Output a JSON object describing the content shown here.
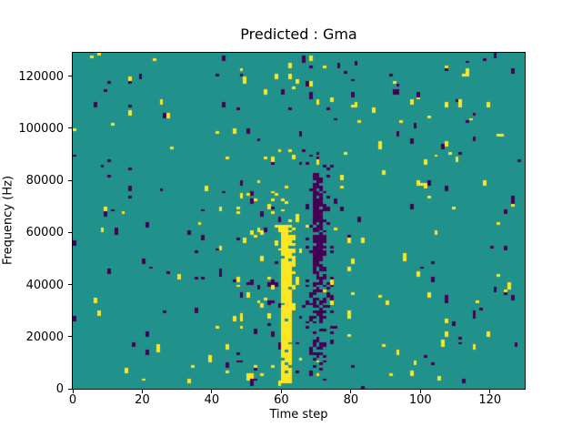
{
  "figure": {
    "background": "#ffffff",
    "text_color": "#000000",
    "spine_color": "#000000"
  },
  "chart_data": {
    "type": "heatmap",
    "title": "Predicted : Gma",
    "xlabel": "Time step",
    "ylabel": "Frequency (Hz)",
    "x_ticks": [
      0,
      20,
      40,
      60,
      80,
      100,
      120
    ],
    "y_ticks": [
      0,
      20000,
      40000,
      60000,
      80000,
      100000,
      120000
    ],
    "x_range": [
      0,
      130
    ],
    "y_range": [
      0,
      129000
    ],
    "grid": {
      "cols": 130,
      "rows": 129,
      "hz_per_row": 1000
    },
    "legend": "none",
    "gridlines": false,
    "background_value": 1,
    "value_levels": [
      0,
      1,
      2
    ],
    "colormap": {
      "0": "#440154",
      "1": "#21918c",
      "2": "#fde725"
    },
    "data_is_procedural_approximation": true,
    "generation": {
      "seed": 20240529,
      "base_density": {
        "low": 0.007,
        "high": 0.007
      },
      "streak_extend_prob": 0.45,
      "streak_extend2_prob": 0.18,
      "bands": [
        {
          "t": [
            40,
            80
          ],
          "rows": [
            0,
            128
          ],
          "low_mult": 1.9,
          "high_mult": 1.8
        },
        {
          "t": [
            44,
            59
          ],
          "rows": [
            0,
            60
          ],
          "low_mult": 1.4,
          "high_mult": 2.2
        },
        {
          "t": [
            100,
            129
          ],
          "rows": [
            0,
            128
          ],
          "low_mult": 1.25,
          "high_mult": 1.25
        }
      ],
      "features": [
        {
          "name": "purple-cluster-halo",
          "value": 0,
          "t": [
            67,
            74
          ],
          "rows": [
            5,
            90
          ],
          "density": 0.1
        },
        {
          "name": "purple-cluster",
          "value": 0,
          "t": [
            69,
            72
          ],
          "rows": [
            10,
            72
          ],
          "density": 0.38
        },
        {
          "name": "purple-cluster-core",
          "value": 0,
          "t": [
            69,
            71
          ],
          "rows": [
            45,
            82
          ],
          "density": 0.6
        },
        {
          "name": "yellow-scatter-above-burst",
          "value": 2,
          "t": [
            57,
            63
          ],
          "rows": [
            50,
            78
          ],
          "density": 0.14
        },
        {
          "name": "yellow-burst-fringe",
          "value": 2,
          "t": [
            63,
            63
          ],
          "rows": [
            28,
            58
          ],
          "density": 0.45
        },
        {
          "name": "yellow-burst-column",
          "value": 2,
          "t": [
            60,
            62
          ],
          "rows": [
            2,
            62
          ],
          "density": 0.92
        }
      ]
    }
  }
}
